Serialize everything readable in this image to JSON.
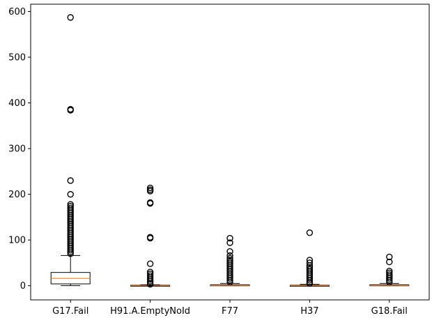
{
  "chart_data": {
    "type": "box",
    "title": "",
    "xlabel": "",
    "ylabel": "",
    "ylim": [
      -31,
      616
    ],
    "yticks": [
      0,
      100,
      200,
      300,
      400,
      500,
      600
    ],
    "categories": [
      "G17.Fail",
      "H91.A.EmptyNoId",
      "F77",
      "H37",
      "G18.Fail"
    ],
    "boxes": [
      {
        "category": "G17.Fail",
        "min": 0,
        "q1": 4,
        "median": 16,
        "q3": 29,
        "max": 66,
        "outliers": [
          587,
          386,
          384,
          230,
          200,
          178,
          174,
          170,
          166,
          162,
          158,
          154,
          150,
          146,
          142,
          138,
          134,
          130,
          126,
          122,
          118,
          114,
          110,
          106,
          102,
          98,
          94,
          90,
          86,
          82,
          78,
          74,
          70
        ]
      },
      {
        "category": "H91.A.EmptyNoId",
        "min": 0,
        "q1": 0,
        "median": 0,
        "q3": 1,
        "max": 2,
        "outliers": [
          214,
          210,
          207,
          182,
          180,
          106,
          104,
          48,
          30,
          26,
          22,
          18,
          14,
          10,
          6,
          3
        ]
      },
      {
        "category": "F77",
        "min": 0,
        "q1": 0,
        "median": 0,
        "q3": 2,
        "max": 5,
        "outliers": [
          104,
          94,
          75,
          66,
          60,
          56,
          52,
          48,
          44,
          40,
          36,
          32,
          28,
          24,
          20,
          16,
          12,
          8
        ]
      },
      {
        "category": "H37",
        "min": 0,
        "q1": 0,
        "median": 0,
        "q3": 1,
        "max": 3,
        "outliers": [
          116,
          56,
          50,
          44,
          40,
          36,
          32,
          28,
          24,
          20,
          16,
          12,
          8,
          5
        ]
      },
      {
        "category": "G18.Fail",
        "min": 0,
        "q1": 0,
        "median": 0,
        "q3": 2,
        "max": 5,
        "outliers": [
          63,
          52,
          32,
          28,
          24,
          20,
          16,
          12,
          8
        ]
      }
    ],
    "colors": {
      "box": "#000000",
      "median": "#ff7f0e",
      "outlier": "#000000"
    },
    "grid": false,
    "legend": "none"
  }
}
